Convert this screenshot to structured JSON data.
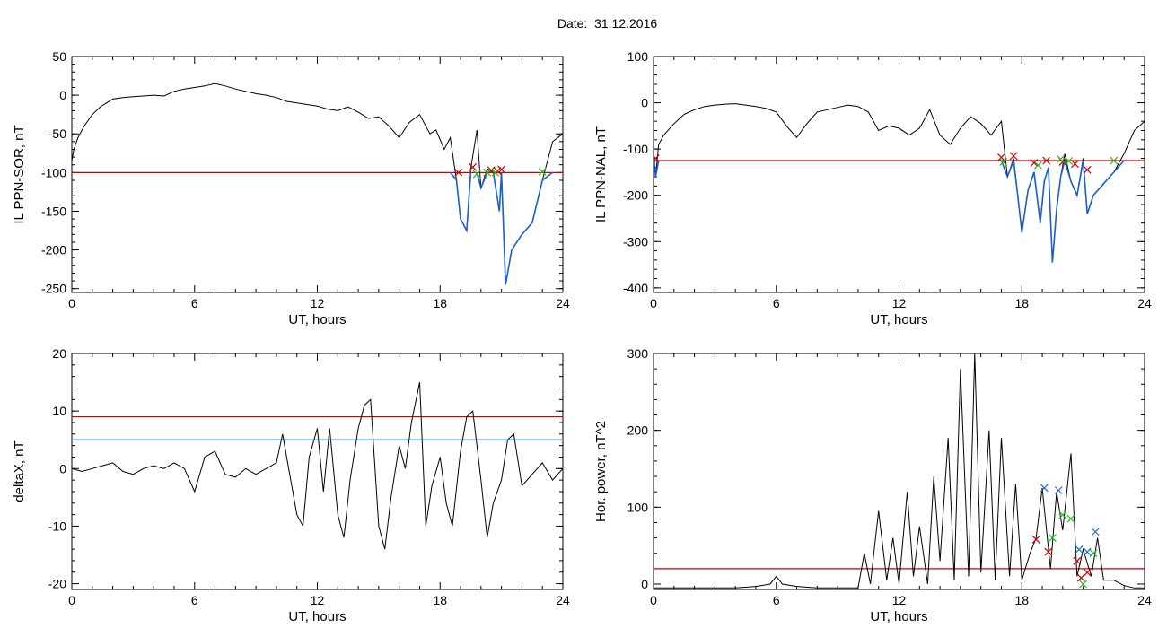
{
  "title": "Date:  31.12.2016",
  "colors": {
    "axis": "#000000",
    "signal": "#000000",
    "threshold_red": "#cc0000",
    "threshold_blue": "#1a6fd6",
    "sub_threshold": "#1a5fd0",
    "marker_red": "#cc0000",
    "marker_green": "#22bb22",
    "marker_blue": "#1a6fd6"
  },
  "chart_data": [
    {
      "type": "line",
      "xlabel": "UT, hours",
      "ylabel": "IL PPN-SOR, nT",
      "xlim": [
        0,
        24
      ],
      "ylim": [
        -255,
        50
      ],
      "xticks": [
        0,
        6,
        12,
        18,
        24
      ],
      "yticks": [
        50,
        0,
        -50,
        -100,
        -150,
        -200,
        -250
      ],
      "thresholds": [
        {
          "value": -100,
          "color": "#cc0000"
        }
      ],
      "highlight_below_threshold": true,
      "series": [
        {
          "x": [
            0,
            0.1,
            0.3,
            0.6,
            1.0,
            1.4,
            2.0,
            2.5,
            3.0,
            3.5,
            4.0,
            4.5,
            5.0,
            5.5,
            6.0,
            6.5,
            7.0,
            7.5,
            8.0,
            8.5,
            9.0,
            9.5,
            10.0,
            10.5,
            11.0,
            11.5,
            12.0,
            12.5,
            13.0,
            13.5,
            14.0,
            14.5,
            15.0,
            15.5,
            16.0,
            16.5,
            17.0,
            17.5,
            17.8,
            18.2,
            18.5,
            18.8,
            19.0,
            19.3,
            19.5,
            19.8,
            20.0,
            20.3,
            20.6,
            20.9,
            21.0,
            21.2,
            21.5,
            22.0,
            22.5,
            23.0,
            23.5,
            24.0
          ],
          "y": [
            -85,
            -70,
            -55,
            -40,
            -25,
            -15,
            -5,
            -3,
            -2,
            -1,
            0,
            -1,
            5,
            8,
            10,
            12,
            15,
            12,
            8,
            5,
            2,
            0,
            -3,
            -8,
            -10,
            -12,
            -14,
            -18,
            -20,
            -15,
            -22,
            -30,
            -28,
            -40,
            -55,
            -35,
            -25,
            -50,
            -45,
            -70,
            -55,
            -110,
            -160,
            -175,
            -95,
            -45,
            -120,
            -95,
            -100,
            -150,
            -100,
            -245,
            -200,
            -180,
            -165,
            -110,
            -60,
            -50
          ]
        }
      ],
      "markers": [
        {
          "color": "#cc0000",
          "points": [
            [
              18.9,
              -100
            ],
            [
              19.6,
              -93
            ],
            [
              20.5,
              -97
            ],
            [
              20.8,
              -98
            ],
            [
              21.0,
              -96
            ]
          ]
        },
        {
          "color": "#22bb22",
          "points": [
            [
              19.8,
              -102
            ],
            [
              20.3,
              -100
            ],
            [
              20.7,
              -100
            ],
            [
              23.0,
              -99
            ]
          ]
        }
      ]
    },
    {
      "type": "line",
      "xlabel": "UT, hours",
      "ylabel": "IL PPN-NAL, nT",
      "xlim": [
        0,
        24
      ],
      "ylim": [
        -410,
        100
      ],
      "xticks": [
        0,
        6,
        12,
        18,
        24
      ],
      "yticks": [
        100,
        0,
        -100,
        -200,
        -300,
        -400
      ],
      "thresholds": [
        {
          "value": -125,
          "color": "#cc0000"
        }
      ],
      "highlight_below_threshold": true,
      "series": [
        {
          "x": [
            0,
            0.1,
            0.25,
            0.5,
            1.0,
            1.5,
            2.0,
            2.5,
            3.0,
            3.5,
            4.0,
            4.5,
            5.0,
            5.5,
            6.0,
            6.5,
            7.0,
            7.5,
            8.0,
            8.5,
            9.0,
            9.5,
            10.0,
            10.5,
            11.0,
            11.5,
            12.0,
            12.5,
            13.0,
            13.5,
            14.0,
            14.5,
            15.0,
            15.5,
            16.0,
            16.5,
            17.0,
            17.3,
            17.6,
            17.8,
            18.0,
            18.3,
            18.6,
            18.9,
            19.1,
            19.3,
            19.5,
            19.7,
            19.9,
            20.1,
            20.4,
            20.7,
            21.0,
            21.2,
            21.5,
            22.0,
            22.5,
            23.0,
            23.5,
            24.0
          ],
          "y": [
            -100,
            -160,
            -90,
            -70,
            -45,
            -25,
            -15,
            -8,
            -5,
            -3,
            -2,
            -5,
            -8,
            -12,
            -20,
            -50,
            -75,
            -45,
            -20,
            -15,
            -10,
            -5,
            -8,
            -20,
            -60,
            -50,
            -55,
            -70,
            -55,
            -15,
            -70,
            -90,
            -55,
            -30,
            -45,
            -70,
            -40,
            -160,
            -120,
            -200,
            -280,
            -190,
            -150,
            -260,
            -170,
            -140,
            -345,
            -230,
            -160,
            -110,
            -170,
            -200,
            -120,
            -240,
            -200,
            -175,
            -150,
            -110,
            -60,
            -40
          ]
        }
      ],
      "markers": [
        {
          "color": "#cc0000",
          "points": [
            [
              0.1,
              -120
            ],
            [
              17.0,
              -118
            ],
            [
              17.6,
              -115
            ],
            [
              18.6,
              -130
            ],
            [
              19.2,
              -125
            ],
            [
              20.0,
              -128
            ],
            [
              20.6,
              -132
            ],
            [
              21.2,
              -145
            ]
          ]
        },
        {
          "color": "#22bb22",
          "points": [
            [
              17.1,
              -128
            ],
            [
              18.8,
              -135
            ],
            [
              19.9,
              -122
            ],
            [
              20.3,
              -126
            ],
            [
              22.5,
              -125
            ]
          ]
        }
      ]
    },
    {
      "type": "line",
      "xlabel": "UT, hours",
      "ylabel": "deltaX, nT",
      "xlim": [
        0,
        24
      ],
      "ylim": [
        -21,
        20
      ],
      "xticks": [
        0,
        6,
        12,
        18,
        24
      ],
      "yticks": [
        20,
        10,
        0,
        -10,
        -20
      ],
      "thresholds": [
        {
          "value": 9,
          "color": "#cc0000"
        },
        {
          "value": 5,
          "color": "#1a6fd6"
        }
      ],
      "highlight_below_threshold": false,
      "series": [
        {
          "x": [
            0,
            0.5,
            1.0,
            1.5,
            2.0,
            2.5,
            3.0,
            3.5,
            4.0,
            4.5,
            5.0,
            5.5,
            6.0,
            6.5,
            7.0,
            7.5,
            8.0,
            8.5,
            9.0,
            9.5,
            10.0,
            10.3,
            10.6,
            11.0,
            11.3,
            11.6,
            12.0,
            12.3,
            12.6,
            13.0,
            13.3,
            13.6,
            14.0,
            14.3,
            14.6,
            15.0,
            15.3,
            15.6,
            16.0,
            16.3,
            16.6,
            17.0,
            17.3,
            17.6,
            18.0,
            18.3,
            18.6,
            19.0,
            19.3,
            19.6,
            20.0,
            20.3,
            20.6,
            21.0,
            21.3,
            21.6,
            22.0,
            22.5,
            23.0,
            23.5,
            24.0
          ],
          "y": [
            0,
            -0.5,
            0,
            0.5,
            1,
            -0.5,
            -1,
            0,
            0.5,
            0,
            1,
            0,
            -4,
            2,
            3,
            -1,
            -1.5,
            0,
            -1,
            0,
            1,
            6,
            0,
            -8,
            -10,
            2,
            7,
            -4,
            7,
            -8,
            -12,
            -2,
            7,
            11,
            12,
            -10,
            -14,
            -5,
            4,
            0,
            8,
            15,
            -10,
            -3,
            2,
            -6,
            -10,
            3,
            9,
            10,
            -2,
            -12,
            -6,
            -2,
            5,
            6,
            -3,
            -1,
            1,
            -2,
            0
          ]
        }
      ],
      "markers": []
    },
    {
      "type": "line",
      "xlabel": "UT, hours",
      "ylabel": "Hor. power, nT^2",
      "xlim": [
        0,
        24
      ],
      "ylim": [
        -7,
        300
      ],
      "xticks": [
        0,
        6,
        12,
        18,
        24
      ],
      "yticks": [
        300,
        200,
        100,
        0
      ],
      "thresholds": [
        {
          "value": 20,
          "color": "#cc0000"
        }
      ],
      "highlight_below_threshold": false,
      "series": [
        {
          "x": [
            0,
            1,
            2,
            3,
            4,
            5,
            5.7,
            6.0,
            6.3,
            7,
            8,
            9,
            10,
            10.3,
            10.6,
            11.0,
            11.4,
            11.7,
            12.0,
            12.4,
            12.7,
            13.0,
            13.4,
            13.7,
            14.0,
            14.4,
            14.7,
            15.0,
            15.4,
            15.7,
            16.0,
            16.4,
            16.7,
            17.0,
            17.4,
            17.7,
            18.0,
            18.4,
            18.7,
            19.0,
            19.4,
            19.7,
            20.0,
            20.4,
            20.7,
            21.0,
            21.4,
            21.7,
            22.0,
            22.5,
            23.0,
            23.5,
            24.0
          ],
          "y": [
            -5,
            -5,
            -5,
            -5,
            -5,
            -3,
            0,
            10,
            0,
            -3,
            -5,
            -5,
            -5,
            40,
            0,
            95,
            5,
            60,
            0,
            120,
            10,
            75,
            0,
            140,
            30,
            190,
            5,
            280,
            10,
            300,
            15,
            200,
            5,
            190,
            10,
            130,
            5,
            40,
            60,
            125,
            20,
            120,
            70,
            170,
            10,
            45,
            10,
            60,
            5,
            5,
            -2,
            -5,
            -5
          ]
        }
      ],
      "markers": [
        {
          "color": "#cc0000",
          "points": [
            [
              18.7,
              58
            ],
            [
              19.3,
              42
            ],
            [
              20.7,
              30
            ],
            [
              20.9,
              8
            ],
            [
              21.2,
              15
            ]
          ]
        },
        {
          "color": "#22bb22",
          "points": [
            [
              19.5,
              60
            ],
            [
              20.0,
              90
            ],
            [
              20.4,
              85
            ],
            [
              21.0,
              0
            ],
            [
              21.5,
              40
            ]
          ]
        },
        {
          "color": "#1a6fd6",
          "points": [
            [
              19.1,
              125
            ],
            [
              19.8,
              122
            ],
            [
              20.8,
              45
            ],
            [
              21.2,
              42
            ],
            [
              21.6,
              68
            ]
          ]
        }
      ]
    }
  ]
}
